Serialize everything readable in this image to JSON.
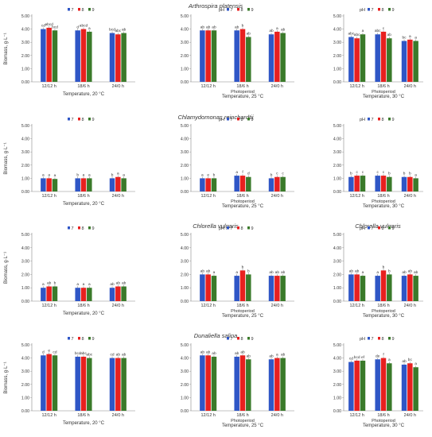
{
  "figure": {
    "rows": [
      {
        "title": "Arthrospira platensis"
      },
      {
        "title": "Chlamydomonas reinchardtii"
      },
      {
        "title": "Chlorella vulgaris",
        "title_right": "Chlorella vulgaris"
      },
      {
        "title": "Dunaliella salina"
      }
    ],
    "colors": [
      "#2f56c6",
      "#e8201f",
      "#3a7a2a"
    ],
    "legend_ph_label": "pH",
    "legend_labels": [
      "7",
      "8",
      "9"
    ]
  },
  "chart_data": [
    {
      "type": "bar",
      "panel": "Arthrospira platensis, 20 °C",
      "categories": [
        "12/12 h",
        "18/6 h",
        "24/0 h"
      ],
      "series": [
        {
          "name": "7",
          "values": [
            4.0,
            3.9,
            3.7
          ]
        },
        {
          "name": "8",
          "values": [
            4.1,
            4.0,
            3.6
          ]
        },
        {
          "name": "9",
          "values": [
            3.9,
            3.8,
            3.7
          ]
        }
      ],
      "letters": [
        [
          "cd",
          "d",
          "bcd"
        ],
        [
          "abcd",
          "abcd",
          "abc"
        ],
        [
          "bcd",
          "a",
          "ab"
        ]
      ],
      "ylabel": "Biomass, g·L⁻¹",
      "xlabel": "Temperature, 20 °C",
      "ylim": [
        0,
        5
      ],
      "yticks": [
        "0.00",
        "1.00",
        "2.00",
        "3.00",
        "4.00",
        "5.00"
      ],
      "legend_ph": false
    },
    {
      "type": "bar",
      "panel": "Arthrospira platensis, 25 °C",
      "categories": [
        "12/12 h",
        "18/6 h",
        "24/0 h"
      ],
      "series": [
        {
          "name": "7",
          "values": [
            3.9,
            3.9,
            3.6
          ]
        },
        {
          "name": "8",
          "values": [
            3.9,
            4.0,
            3.8
          ]
        },
        {
          "name": "9",
          "values": [
            3.9,
            3.4,
            3.7
          ]
        }
      ],
      "letters": [
        [
          "ab",
          "ab",
          "ab"
        ],
        [
          "ab",
          "b",
          "a"
        ],
        [
          "ab",
          "ab",
          "ab"
        ]
      ],
      "ylabel": "",
      "xlabel": "Temperature, 25 °C",
      "xsublabel": "Photoperiod",
      "ylim": [
        0,
        5
      ],
      "yticks": [
        "0.00",
        "1.00",
        "2.00",
        "3.00",
        "4.00",
        "5.00"
      ],
      "legend_ph": true
    },
    {
      "type": "bar",
      "panel": "Arthrospira platensis, 30 °C",
      "categories": [
        "12/12 h",
        "18/6 h",
        "24/0 h"
      ],
      "series": [
        {
          "name": "7",
          "values": [
            3.4,
            3.6,
            3.1
          ]
        },
        {
          "name": "8",
          "values": [
            3.3,
            3.8,
            3.2
          ]
        },
        {
          "name": "9",
          "values": [
            3.6,
            3.3,
            3.1
          ]
        }
      ],
      "letters": [
        [
          "abc",
          "abc",
          "bc"
        ],
        [
          "abc",
          "c",
          "a"
        ],
        [
          "a",
          "ab",
          "a"
        ]
      ],
      "ylabel": "",
      "xlabel": "Temperature, 30 °C",
      "xsublabel": "Photoperiod",
      "ylim": [
        0,
        5
      ],
      "yticks": [
        "0.00",
        "1.00",
        "2.00",
        "3.00",
        "4.00",
        "5.00"
      ],
      "legend_ph": true
    },
    {
      "type": "bar",
      "panel": "Chlamydomonas reinchardtii, 20 °C",
      "categories": [
        "12/12 h",
        "18/6 h",
        "24/0 h"
      ],
      "series": [
        {
          "name": "7",
          "values": [
            1.0,
            1.0,
            1.0
          ]
        },
        {
          "name": "8",
          "values": [
            1.0,
            1.0,
            1.1
          ]
        },
        {
          "name": "9",
          "values": [
            0.95,
            1.0,
            1.0
          ]
        }
      ],
      "letters": [
        [
          "a",
          "b",
          "b"
        ],
        [
          "a",
          "a",
          "a"
        ],
        [
          "a",
          "a",
          "a"
        ]
      ],
      "ylabel": "Biomass, g·L⁻¹",
      "xlabel": "Temperature, 20 °C",
      "ylim": [
        0,
        5
      ],
      "yticks": [
        "0.00",
        "1.00",
        "2.00",
        "3.00",
        "4.00",
        "5.00"
      ],
      "legend_ph": false
    },
    {
      "type": "bar",
      "panel": "Chlamydomonas reinchardtii, 25 °C",
      "categories": [
        "12/12 h",
        "18/6 h",
        "24/0 h"
      ],
      "series": [
        {
          "name": "7",
          "values": [
            1.0,
            1.2,
            1.0
          ]
        },
        {
          "name": "8",
          "values": [
            1.0,
            1.2,
            1.1
          ]
        },
        {
          "name": "9",
          "values": [
            1.0,
            1.1,
            1.1
          ]
        }
      ],
      "letters": [
        [
          "a",
          "a",
          "b"
        ],
        [
          "e",
          "f",
          "c"
        ],
        [
          "b",
          "d",
          "c"
        ]
      ],
      "ylabel": "",
      "xlabel": "Temperature, 25 °C",
      "xsublabel": "Photoperiod",
      "ylim": [
        0,
        5
      ],
      "yticks": [
        "0.00",
        "1.00",
        "2.00",
        "3.00",
        "4.00",
        "5.00"
      ],
      "legend_ph": true
    },
    {
      "type": "bar",
      "panel": "Chlamydomonas reinchardtii, 30 °C",
      "categories": [
        "12/12 h",
        "18/6 h",
        "24/0 h"
      ],
      "series": [
        {
          "name": "7",
          "values": [
            1.1,
            1.2,
            1.1
          ]
        },
        {
          "name": "8",
          "values": [
            1.2,
            1.2,
            1.1
          ]
        },
        {
          "name": "9",
          "values": [
            1.2,
            1.1,
            1.0
          ]
        }
      ],
      "letters": [
        [
          "b",
          "c",
          "b"
        ],
        [
          "c",
          "c",
          "b"
        ],
        [
          "c",
          "b",
          "a"
        ]
      ],
      "ylabel": "",
      "xlabel": "Temperature, 30 °C",
      "xsublabel": "Photoperiod",
      "ylim": [
        0,
        5
      ],
      "yticks": [
        "0.00",
        "1.00",
        "2.00",
        "3.00",
        "4.00",
        "5.00"
      ],
      "legend_ph": true
    },
    {
      "type": "bar",
      "panel": "Chlorella vulgaris, 20 °C",
      "categories": [
        "12/12 h",
        "18/6 h",
        "24/0 h"
      ],
      "series": [
        {
          "name": "7",
          "values": [
            1.0,
            1.0,
            1.0
          ]
        },
        {
          "name": "8",
          "values": [
            1.1,
            1.0,
            1.1
          ]
        },
        {
          "name": "9",
          "values": [
            1.1,
            1.0,
            1.1
          ]
        }
      ],
      "letters": [
        [
          "a",
          "a",
          "ab"
        ],
        [
          "ab",
          "a",
          "ab"
        ],
        [
          "b",
          "a",
          "ab"
        ]
      ],
      "ylabel": "Biomass, g·L⁻¹",
      "xlabel": "Temperature, 20 °C",
      "ylim": [
        0,
        5
      ],
      "yticks": [
        "0.00",
        "1.00",
        "2.00",
        "3.00",
        "4.00",
        "5.00"
      ],
      "legend_ph": false
    },
    {
      "type": "bar",
      "panel": "Chlorella vulgaris, 25 °C",
      "categories": [
        "12/12 h",
        "18/6 h",
        "24/0 h"
      ],
      "series": [
        {
          "name": "7",
          "values": [
            2.0,
            1.9,
            1.9
          ]
        },
        {
          "name": "8",
          "values": [
            2.0,
            2.3,
            1.9
          ]
        },
        {
          "name": "9",
          "values": [
            1.9,
            2.0,
            1.9
          ]
        }
      ],
      "letters": [
        [
          "ab",
          "a",
          "ab"
        ],
        [
          "ab",
          "b",
          "ab"
        ],
        [
          "a",
          "b",
          "ab"
        ]
      ],
      "ylabel": "",
      "xlabel": "Temperature, 25 °C",
      "xsublabel": "Photoperiod",
      "ylim": [
        0,
        5
      ],
      "yticks": [
        "0.00",
        "1.00",
        "2.00",
        "3.00",
        "4.00",
        "5.00"
      ],
      "legend_ph": true
    },
    {
      "type": "bar",
      "panel": "Chlorella vulgaris, 30 °C",
      "categories": [
        "12/12 h",
        "18/6 h",
        "24/0 h"
      ],
      "series": [
        {
          "name": "7",
          "values": [
            2.0,
            1.9,
            1.9
          ]
        },
        {
          "name": "8",
          "values": [
            2.0,
            2.3,
            2.0
          ]
        },
        {
          "name": "9",
          "values": [
            1.9,
            2.0,
            1.9
          ]
        }
      ],
      "letters": [
        [
          "ab",
          "a",
          "ab"
        ],
        [
          "ab",
          "b",
          "ab"
        ],
        [
          "a",
          "b",
          "ab"
        ]
      ],
      "ylabel": "",
      "xlabel": "Temperature, 30 °C",
      "xsublabel": "Photoperiod",
      "ylim": [
        0,
        5
      ],
      "yticks": [
        "0.00",
        "1.00",
        "2.00",
        "3.00",
        "4.00",
        "5.00"
      ],
      "legend_ph": true
    },
    {
      "type": "bar",
      "panel": "Dunaliella salina, 20 °C",
      "categories": [
        "12/12 h",
        "18/6 h",
        "24/0 h"
      ],
      "series": [
        {
          "name": "7",
          "values": [
            4.2,
            4.1,
            4.0
          ]
        },
        {
          "name": "8",
          "values": [
            4.3,
            4.1,
            4.0
          ]
        },
        {
          "name": "9",
          "values": [
            4.2,
            4.0,
            4.0
          ]
        }
      ],
      "letters": [
        [
          "d",
          "bcd",
          "cd"
        ],
        [
          "e",
          "abc",
          "ab"
        ],
        [
          "cd",
          "abc",
          "ab"
        ]
      ],
      "ylabel": "Biomass, g·L⁻¹",
      "xlabel": "Temperature, 20 °C",
      "ylim": [
        0,
        5
      ],
      "yticks": [
        "0.00",
        "1.00",
        "2.00",
        "3.00",
        "4.00",
        "5.00"
      ],
      "legend_ph": false
    },
    {
      "type": "bar",
      "panel": "Dunaliella salina, 25 °C",
      "categories": [
        "12/12 h",
        "18/6 h",
        "24/0 h"
      ],
      "series": [
        {
          "name": "7",
          "values": [
            4.2,
            4.1,
            3.9
          ]
        },
        {
          "name": "8",
          "values": [
            4.2,
            4.2,
            4.0
          ]
        },
        {
          "name": "9",
          "values": [
            4.1,
            3.9,
            4.0
          ]
        }
      ],
      "letters": [
        [
          "ab",
          "ab",
          "ab"
        ],
        [
          "ab",
          "ab",
          "a"
        ],
        [
          "ab",
          "ab",
          "ab"
        ]
      ],
      "ylabel": "",
      "xlabel": "Temperature, 25 °C",
      "xsublabel": "Photoperiod",
      "ylim": [
        0,
        5
      ],
      "yticks": [
        "0.00",
        "1.00",
        "2.00",
        "3.00",
        "4.00",
        "5.00"
      ],
      "legend_ph": false
    },
    {
      "type": "bar",
      "panel": "Dunaliella salina, 30 °C",
      "categories": [
        "12/12 h",
        "18/6 h",
        "24/0 h"
      ],
      "series": [
        {
          "name": "7",
          "values": [
            3.7,
            3.9,
            3.5
          ]
        },
        {
          "name": "8",
          "values": [
            3.8,
            4.0,
            3.6
          ]
        },
        {
          "name": "9",
          "values": [
            3.8,
            3.6,
            3.3
          ]
        }
      ],
      "letters": [
        [
          "cd",
          "de",
          "ab"
        ],
        [
          "bcd",
          "f",
          "bc"
        ],
        [
          "ef",
          "a",
          "a"
        ]
      ],
      "ylabel": "",
      "xlabel": "Temperature, 30 °C",
      "xsublabel": "Photoperiod",
      "ylim": [
        0,
        5
      ],
      "yticks": [
        "0.00",
        "1.00",
        "2.00",
        "3.00",
        "4.00",
        "5.00"
      ],
      "legend_ph": true
    }
  ]
}
